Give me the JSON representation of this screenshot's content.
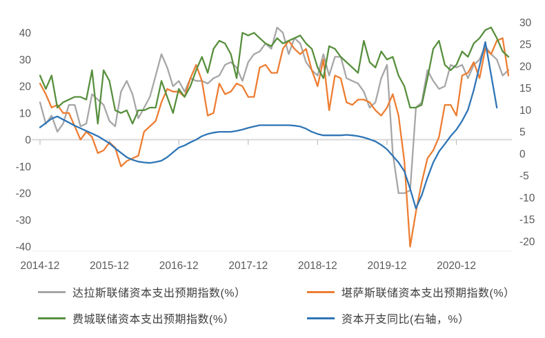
{
  "colors": {
    "dallas": "#a6a6a6",
    "kansas": "#ed7d31",
    "philly": "#578f3d",
    "capex_yoy": "#2e75b6",
    "zero_line": "#d9d9d9",
    "axis_text": "#595959",
    "tick_mark": "#bfbfbf",
    "plot_bottom_line": "#ececec"
  },
  "legend": {
    "items": [
      {
        "id": "dallas",
        "label": "达拉斯联储资本支出预期指数(%）",
        "color": "#a6a6a6"
      },
      {
        "id": "kansas",
        "label": "堪萨斯联储资本支出预期指数(%）",
        "color": "#ed7d31"
      },
      {
        "id": "philly",
        "label": "费城联储资本支出预期指数(%）",
        "color": "#578f3d"
      },
      {
        "id": "capex_yoy",
        "label": "资本开支同比(右轴，%）",
        "color": "#2e75b6"
      }
    ]
  },
  "chart_data": {
    "type": "line",
    "title": "",
    "grid": "zero-line-only",
    "legend_position": "bottom",
    "left_axis": {
      "min": -40,
      "max": 40,
      "step": 10,
      "ticks": [
        40,
        30,
        20,
        10,
        0,
        -10,
        -20,
        -30,
        -40
      ]
    },
    "right_axis": {
      "min": -20,
      "max": 30,
      "step": 5,
      "ticks": [
        30,
        25,
        20,
        15,
        10,
        5,
        0,
        -5,
        -10,
        -15,
        -20
      ]
    },
    "x_tick_interval": 12,
    "x_tick_labels": [
      "2014-12",
      "2015-12",
      "2016-12",
      "2017-12",
      "2018-12",
      "2019-12",
      "2020-12"
    ],
    "x": [
      "2014-12",
      "2015-01",
      "2015-02",
      "2015-03",
      "2015-04",
      "2015-05",
      "2015-06",
      "2015-07",
      "2015-08",
      "2015-09",
      "2015-10",
      "2015-11",
      "2015-12",
      "2016-01",
      "2016-02",
      "2016-03",
      "2016-04",
      "2016-05",
      "2016-06",
      "2016-07",
      "2016-08",
      "2016-09",
      "2016-10",
      "2016-11",
      "2016-12",
      "2017-01",
      "2017-02",
      "2017-03",
      "2017-04",
      "2017-05",
      "2017-06",
      "2017-07",
      "2017-08",
      "2017-09",
      "2017-10",
      "2017-11",
      "2017-12",
      "2018-01",
      "2018-02",
      "2018-03",
      "2018-04",
      "2018-05",
      "2018-06",
      "2018-07",
      "2018-08",
      "2018-09",
      "2018-10",
      "2018-11",
      "2018-12",
      "2019-01",
      "2019-02",
      "2019-03",
      "2019-04",
      "2019-05",
      "2019-06",
      "2019-07",
      "2019-08",
      "2019-09",
      "2019-10",
      "2019-11",
      "2019-12",
      "2020-01",
      "2020-02",
      "2020-03",
      "2020-04",
      "2020-05",
      "2020-06",
      "2020-07",
      "2020-08",
      "2020-09",
      "2020-10",
      "2020-11",
      "2020-12",
      "2021-01",
      "2021-02",
      "2021-03",
      "2021-04",
      "2021-05",
      "2021-06",
      "2021-07",
      "2021-08",
      "2021-09"
    ],
    "series": [
      {
        "name": "达拉斯联储资本支出预期指数(%）",
        "id": "dallas",
        "axis": "left",
        "color": "#a6a6a6",
        "values": [
          14,
          6,
          9,
          3,
          6,
          13,
          13,
          5,
          6,
          17,
          15,
          13,
          7,
          5,
          18,
          22,
          17,
          8,
          12,
          16,
          24,
          32,
          27,
          20,
          22,
          18,
          23,
          22,
          22,
          21,
          23,
          24,
          28,
          29,
          27,
          22,
          29,
          32,
          33,
          36,
          34,
          42,
          40,
          32,
          38,
          36,
          29,
          26,
          24,
          32,
          24,
          31,
          31,
          23,
          22,
          21,
          18,
          12,
          14,
          23,
          28,
          -5,
          -20,
          -20,
          -19,
          12,
          14,
          26,
          22,
          19,
          20,
          28,
          27,
          28,
          23,
          28,
          30,
          35,
          32,
          30,
          24,
          26
        ]
      },
      {
        "name": "堪萨斯联储资本支出预期指数(%）",
        "id": "kansas",
        "axis": "left",
        "color": "#ed7d31",
        "values": [
          21,
          17,
          12,
          13,
          10,
          10,
          5,
          0,
          3,
          1,
          -5,
          -4,
          -1,
          -3,
          -10,
          -8,
          -7,
          -6,
          3,
          5,
          7,
          14,
          19,
          18,
          18,
          16,
          23,
          28,
          22,
          9,
          10,
          21,
          17,
          18,
          21,
          20,
          16,
          16,
          27,
          28,
          25,
          25,
          34,
          37,
          34,
          32,
          34,
          26,
          20,
          30,
          11,
          24,
          23,
          14,
          13,
          15,
          15,
          14,
          11,
          9,
          12,
          17,
          9,
          -8,
          -40,
          -27,
          -16,
          -7,
          -4,
          1,
          13,
          13,
          9,
          24,
          25,
          29,
          23,
          34,
          32,
          37,
          38,
          24
        ]
      },
      {
        "name": "费城联储资本支出预期指数(%）",
        "id": "philly",
        "axis": "left",
        "color": "#578f3d",
        "values": [
          24,
          19,
          24,
          12,
          14,
          15,
          16,
          16,
          15,
          26,
          6,
          26,
          22,
          11,
          10,
          11,
          6,
          11,
          11,
          12,
          12,
          22,
          16,
          10,
          19,
          16,
          20,
          26,
          31,
          25,
          34,
          37,
          36,
          32,
          23,
          40,
          39,
          40,
          38,
          36,
          35,
          38,
          36,
          37,
          38,
          39,
          36,
          34,
          27,
          23,
          35,
          34,
          31,
          29,
          27,
          25,
          37,
          29,
          27,
          33,
          30,
          31,
          24,
          20,
          12,
          12,
          13,
          23,
          34,
          37,
          28,
          26,
          28,
          33,
          31,
          36,
          38,
          41,
          42,
          38,
          33,
          31
        ]
      },
      {
        "name": "资本开支同比(右轴，%）",
        "id": "capex_yoy",
        "axis": "right",
        "color": "#2e75b6",
        "values": [
          6,
          7,
          8,
          8.5,
          7.8,
          7.1,
          6.4,
          5.8,
          5.2,
          4.6,
          4,
          3.2,
          2.4,
          1.2,
          0.2,
          -0.8,
          -1.4,
          -1.8,
          -2,
          -2.1,
          -1.9,
          -1.6,
          -0.8,
          0.3,
          1.4,
          1.9,
          2.6,
          3.2,
          4,
          4.5,
          4.8,
          5,
          5,
          5,
          5.2,
          5.5,
          5.9,
          6.2,
          6.5,
          6.5,
          6.5,
          6.5,
          6.5,
          6.5,
          6.4,
          6.2,
          5.7,
          5,
          4.5,
          4.2,
          4.2,
          4.2,
          4.2,
          4.3,
          4.2,
          4,
          3.7,
          3.3,
          2.8,
          2,
          1,
          -0.5,
          -2,
          -4,
          -8,
          -12.5,
          -9.5,
          -5.5,
          -2,
          0.5,
          2.2,
          4,
          5.5,
          7.5,
          10,
          14.5,
          20,
          25.5,
          18,
          10.5,
          null,
          null
        ]
      }
    ]
  }
}
